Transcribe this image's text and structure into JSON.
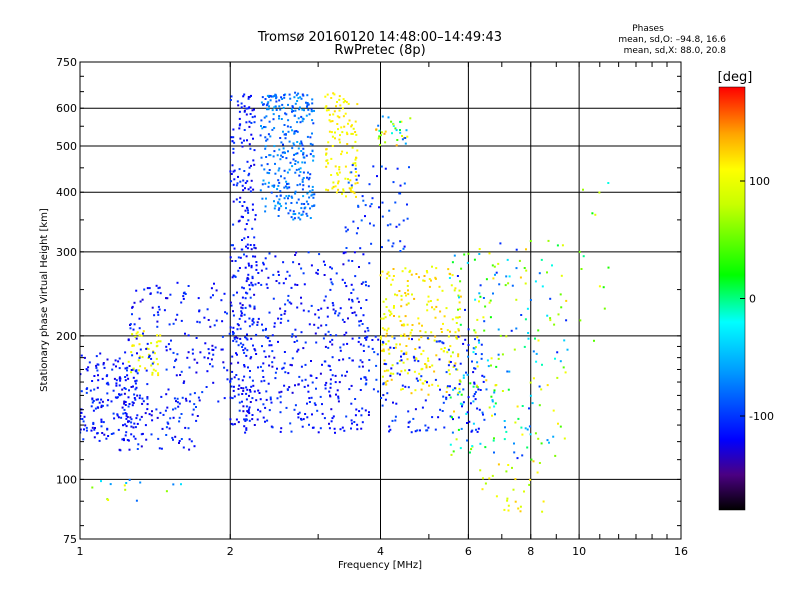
{
  "header": {
    "title_line1": "Tromsø 20160120 14:48:00–14:49:43",
    "title_line2": "RwPretec (8p)",
    "stats_title": "Phases",
    "stats_o": "mean, sd,O: –94.8, 16.6",
    "stats_x": "mean, sd,X:  88.0, 20.8"
  },
  "colorbar": {
    "unit_label": "[deg]",
    "min": -180,
    "max": 180,
    "ticks": [
      {
        "value": 100,
        "label": "100"
      },
      {
        "value": 0,
        "label": "0"
      },
      {
        "value": -100,
        "label": "-100"
      }
    ],
    "gradient_stops": [
      {
        "value": -180,
        "color": "#000000"
      },
      {
        "value": -150,
        "color": "#4b0082"
      },
      {
        "value": -120,
        "color": "#0000ff"
      },
      {
        "value": -60,
        "color": "#00a0ff"
      },
      {
        "value": -20,
        "color": "#00ffff"
      },
      {
        "value": 20,
        "color": "#00ff00"
      },
      {
        "value": 80,
        "color": "#c8ff00"
      },
      {
        "value": 110,
        "color": "#ffff00"
      },
      {
        "value": 140,
        "color": "#ffa500"
      },
      {
        "value": 180,
        "color": "#ff0000"
      }
    ]
  },
  "chart_data": {
    "type": "scatter",
    "title": "Tromsø 20160120 14:48:00–14:49:43",
    "subtitle": "RwPretec (8p)",
    "xlabel": "Frequency [MHz]",
    "ylabel": "Stationary phase Virtual Height [km]",
    "x_scale": "log",
    "y_scale": "log",
    "xlim": [
      1,
      16
    ],
    "ylim": [
      75,
      750
    ],
    "x_ticks": [
      {
        "value": 1,
        "label": "1"
      },
      {
        "value": 2,
        "label": "2"
      },
      {
        "value": 4,
        "label": "4"
      },
      {
        "value": 6,
        "label": "6"
      },
      {
        "value": 8,
        "label": "8"
      },
      {
        "value": 10,
        "label": "10"
      },
      {
        "value": 16,
        "label": "16"
      }
    ],
    "y_ticks": [
      {
        "value": 75,
        "label": "75"
      },
      {
        "value": 100,
        "label": "100"
      },
      {
        "value": 200,
        "label": "200"
      },
      {
        "value": 300,
        "label": "300"
      },
      {
        "value": 400,
        "label": "400"
      },
      {
        "value": 500,
        "label": "500"
      },
      {
        "value": 600,
        "label": "600"
      },
      {
        "value": 750,
        "label": "750"
      }
    ],
    "grid": true,
    "color_by": "phase [deg]",
    "point_groups": [
      {
        "freq_range": [
          1.0,
          1.3
        ],
        "height_range": [
          120,
          185
        ],
        "phase_range": [
          -130,
          -95
        ],
        "count": 180
      },
      {
        "freq_range": [
          1.25,
          1.45
        ],
        "height_range": [
          165,
          205
        ],
        "phase_range": [
          80,
          120
        ],
        "count": 45
      },
      {
        "freq_range": [
          1.2,
          1.75
        ],
        "height_range": [
          115,
          150
        ],
        "phase_range": [
          -130,
          -90
        ],
        "count": 90
      },
      {
        "freq_range": [
          1.25,
          2.0
        ],
        "height_range": [
          145,
          260
        ],
        "phase_range": [
          -130,
          -95
        ],
        "count": 160
      },
      {
        "freq_range": [
          2.0,
          2.25
        ],
        "height_range": [
          130,
          650
        ],
        "phase_range": [
          -130,
          -95
        ],
        "count": 260
      },
      {
        "freq_range": [
          2.3,
          2.95
        ],
        "height_range": [
          350,
          650
        ],
        "phase_range": [
          -100,
          -55
        ],
        "count": 320
      },
      {
        "freq_range": [
          2.1,
          3.8
        ],
        "height_range": [
          125,
          300
        ],
        "phase_range": [
          -130,
          -95
        ],
        "count": 420
      },
      {
        "freq_range": [
          3.1,
          3.6
        ],
        "height_range": [
          390,
          650
        ],
        "phase_range": [
          95,
          125
        ],
        "count": 120
      },
      {
        "freq_range": [
          3.4,
          4.6
        ],
        "height_range": [
          300,
          460
        ],
        "phase_range": [
          -120,
          -80
        ],
        "count": 60
      },
      {
        "freq_range": [
          3.9,
          4.6
        ],
        "height_range": [
          500,
          580
        ],
        "phase_range": [
          -90,
          140
        ],
        "count": 35
      },
      {
        "freq_range": [
          4.0,
          5.8
        ],
        "height_range": [
          150,
          280
        ],
        "phase_range": [
          90,
          135
        ],
        "count": 230
      },
      {
        "freq_range": [
          3.6,
          6.5
        ],
        "height_range": [
          125,
          200
        ],
        "phase_range": [
          -125,
          -90
        ],
        "count": 160
      },
      {
        "freq_range": [
          5.5,
          9.5
        ],
        "height_range": [
          110,
          320
        ],
        "phase_range": [
          -115,
          130
        ],
        "count": 230
      },
      {
        "freq_range": [
          6.3,
          8.6
        ],
        "height_range": [
          85,
          110
        ],
        "phase_range": [
          60,
          130
        ],
        "count": 30
      },
      {
        "freq_range": [
          10.0,
          11.5
        ],
        "height_range": [
          190,
          430
        ],
        "phase_range": [
          -20,
          120
        ],
        "count": 14
      },
      {
        "freq_range": [
          1.0,
          1.6
        ],
        "height_range": [
          90,
          100
        ],
        "phase_range": [
          -130,
          110
        ],
        "count": 14
      }
    ]
  }
}
